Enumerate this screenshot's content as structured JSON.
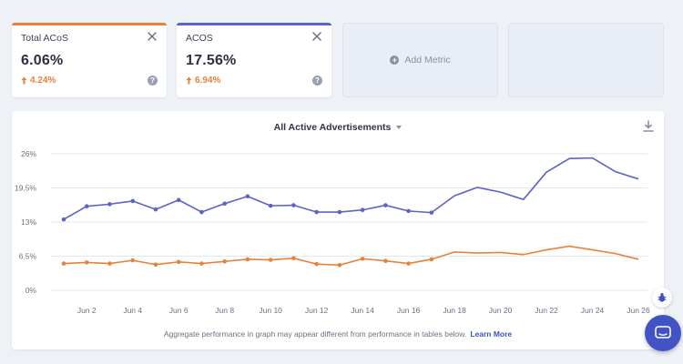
{
  "metrics": [
    {
      "label": "Total ACoS",
      "value": "6.06%",
      "delta": "4.24%",
      "color": "#e8813a",
      "delta_color": "#e8813a"
    },
    {
      "label": "ACOS",
      "value": "17.56%",
      "delta": "6.94%",
      "color": "#5b63c9",
      "delta_color": "#e8813a"
    }
  ],
  "add_metric": {
    "label": "Add Metric"
  },
  "chart": {
    "title": "All Active Advertisements",
    "note": "Aggregate performance in graph may appear different from performance in tables below.",
    "learn_more": "Learn More"
  },
  "chart_data": {
    "type": "line",
    "ylim": [
      0,
      26
    ],
    "yticks": [
      {
        "value": 0,
        "label": "0%"
      },
      {
        "value": 6.5,
        "label": "6.5%"
      },
      {
        "value": 13,
        "label": "13%"
      },
      {
        "value": 19.5,
        "label": "19.5%"
      },
      {
        "value": 26,
        "label": "26%"
      }
    ],
    "x": [
      1,
      2,
      3,
      4,
      5,
      6,
      7,
      8,
      9,
      10,
      11,
      12,
      13,
      14,
      15,
      16,
      17,
      18,
      19,
      20,
      21,
      22,
      23,
      24,
      25,
      26
    ],
    "xticks": [
      {
        "value": 2,
        "label": "Jun 2"
      },
      {
        "value": 4,
        "label": "Jun 4"
      },
      {
        "value": 6,
        "label": "Jun 6"
      },
      {
        "value": 8,
        "label": "Jun 8"
      },
      {
        "value": 10,
        "label": "Jun 10"
      },
      {
        "value": 12,
        "label": "Jun 12"
      },
      {
        "value": 14,
        "label": "Jun 14"
      },
      {
        "value": 16,
        "label": "Jun 16"
      },
      {
        "value": 18,
        "label": "Jun 18"
      },
      {
        "value": 20,
        "label": "Jun 20"
      },
      {
        "value": 22,
        "label": "Jun 22"
      },
      {
        "value": 24,
        "label": "Jun 24"
      },
      {
        "value": 26,
        "label": "Jun 26"
      }
    ],
    "series": [
      {
        "color": "#5b63c9",
        "markers": 17,
        "values": [
          13.5,
          16.0,
          16.4,
          17.0,
          15.4,
          17.2,
          14.9,
          16.5,
          17.9,
          16.1,
          16.2,
          14.9,
          14.9,
          15.3,
          16.2,
          15.1,
          14.8,
          18.0,
          19.6,
          18.7,
          17.3,
          22.5,
          25.1,
          25.2,
          22.6,
          21.2
        ]
      },
      {
        "color": "#e8813a",
        "markers": 17,
        "values": [
          5.1,
          5.3,
          5.1,
          5.7,
          4.9,
          5.4,
          5.1,
          5.5,
          5.9,
          5.8,
          6.1,
          5.0,
          4.8,
          6.0,
          5.6,
          5.1,
          5.9,
          7.3,
          7.1,
          7.2,
          6.8,
          7.7,
          8.4,
          7.7,
          7.0,
          5.9
        ]
      }
    ],
    "grid": true
  }
}
